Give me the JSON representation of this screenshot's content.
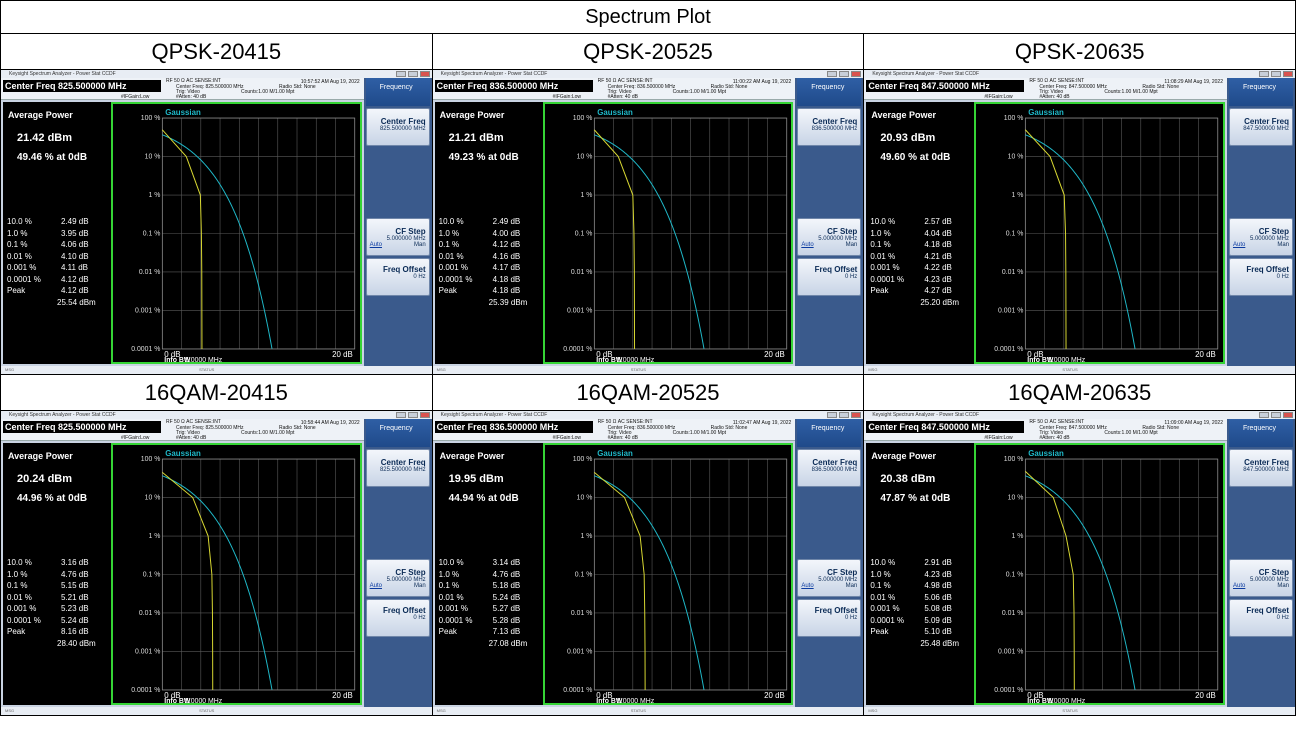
{
  "table_title": "Spectrum Plot",
  "common": {
    "window_title": "Keysight Spectrum Analyzer - Power Stat CCDF",
    "top_info": "RF   50 Ω   AC       SENSE:INT",
    "trig": "Trig: Video",
    "atten": "#Atten: 40 dB",
    "gain": "#IFGain:Low",
    "counts": "Counts:1.00 M/1.00 Mpt",
    "radio_std": "Radio Std: None",
    "softkey_title": "Frequency",
    "center_freq_label": "Center Freq",
    "cf_step_label": "CF Step",
    "cf_step_value": "5.000000 MHz",
    "auto": "Auto",
    "man": "Man",
    "freq_offset_label": "Freq Offset",
    "freq_offset_value": "0 Hz",
    "avg_power_label": "Average Power",
    "trace_label": "Gaussian",
    "y_ticks": [
      "100 %",
      "10 %",
      "1 %",
      "0.1 %",
      "0.01 %",
      "0.001 %",
      "0.0001 %"
    ],
    "x_start": "0 dB",
    "x_end": "20 dB",
    "info_bw_label": "Info BW",
    "info_bw_value": "5.0000 MHz",
    "msg": "MSG",
    "status": "STATUS",
    "row_labels": [
      "10.0 %",
      "1.0 %",
      "0.1 %",
      "0.01 %",
      "0.001 %",
      "0.0001 %",
      "Peak"
    ],
    "colors": {
      "gaussian": "#1fb8c8",
      "measured": "#d8d832",
      "border": "#35d435"
    }
  },
  "panels": [
    {
      "header": "QPSK-20415",
      "cf_bar": "Center Freq 825.500000 MHz",
      "cf_line": "Center Freq: 825.500000 MHz",
      "cf_value": "825.500000 MHz",
      "time": "10:57:52 AM Aug 19, 2022",
      "avg": "21.42 dBm",
      "pct": "49.46 % at 0dB",
      "vals": [
        "2.49 dB",
        "3.95 dB",
        "4.06 dB",
        "4.10 dB",
        "4.11 dB",
        "4.12 dB",
        "4.12 dB"
      ],
      "peak_dbm": "25.54 dBm"
    },
    {
      "header": "QPSK-20525",
      "cf_bar": "Center Freq 836.500000 MHz",
      "cf_line": "Center Freq: 836.500000 MHz",
      "cf_value": "836.500000 MHz",
      "time": "11:00:22 AM Aug 19, 2022",
      "avg": "21.21 dBm",
      "pct": "49.23 % at 0dB",
      "vals": [
        "2.49 dB",
        "4.00 dB",
        "4.12 dB",
        "4.16 dB",
        "4.17 dB",
        "4.18 dB",
        "4.18 dB"
      ],
      "peak_dbm": "25.39 dBm"
    },
    {
      "header": "QPSK-20635",
      "cf_bar": "Center Freq 847.500000 MHz",
      "cf_line": "Center Freq: 847.500000 MHz",
      "cf_value": "847.500000 MHz",
      "time": "11:08:29 AM Aug 19, 2022",
      "avg": "20.93 dBm",
      "pct": "49.60 % at 0dB",
      "vals": [
        "2.57 dB",
        "4.04 dB",
        "4.18 dB",
        "4.21 dB",
        "4.22 dB",
        "4.23 dB",
        "4.27 dB"
      ],
      "peak_dbm": "25.20 dBm"
    },
    {
      "header": "16QAM-20415",
      "cf_bar": "Center Freq 825.500000 MHz",
      "cf_line": "Center Freq: 825.500000 MHz",
      "cf_value": "825.500000 MHz",
      "time": "10:58:44 AM Aug 19, 2022",
      "avg": "20.24 dBm",
      "pct": "44.96 % at 0dB",
      "vals": [
        "3.16 dB",
        "4.76 dB",
        "5.15 dB",
        "5.21 dB",
        "5.23 dB",
        "5.24 dB",
        "8.16 dB"
      ],
      "peak_dbm": "28.40 dBm"
    },
    {
      "header": "16QAM-20525",
      "cf_bar": "Center Freq 836.500000 MHz",
      "cf_line": "Center Freq: 836.500000 MHz",
      "cf_value": "836.500000 MHz",
      "time": "11:02:47 AM Aug 19, 2022",
      "avg": "19.95 dBm",
      "pct": "44.94 % at 0dB",
      "vals": [
        "3.14 dB",
        "4.76 dB",
        "5.18 dB",
        "5.24 dB",
        "5.27 dB",
        "5.28 dB",
        "7.13 dB"
      ],
      "peak_dbm": "27.08 dBm"
    },
    {
      "header": "16QAM-20635",
      "cf_bar": "Center Freq 847.500000 MHz",
      "cf_line": "Center Freq: 847.500000 MHz",
      "cf_value": "847.500000 MHz",
      "time": "11:09:00 AM Aug 19, 2022",
      "avg": "20.38 dBm",
      "pct": "47.87 % at 0dB",
      "vals": [
        "2.91 dB",
        "4.23 dB",
        "4.98 dB",
        "5.06 dB",
        "5.08 dB",
        "5.09 dB",
        "5.10 dB"
      ],
      "peak_dbm": "25.48 dBm"
    }
  ]
}
